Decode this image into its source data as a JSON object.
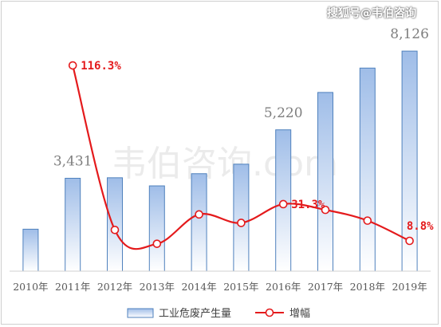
{
  "watermark": {
    "top_right": "搜狐号@韦伯咨询",
    "center": "韦伯咨询.com"
  },
  "colors": {
    "bar_fill_top": "#9fbde8",
    "bar_fill_bottom": "#ffffff",
    "bar_stroke": "#4f81bd",
    "line": "#e41a1c",
    "marker_fill": "#ffffff"
  },
  "chart_data": {
    "type": "bar",
    "categories": [
      "2010年",
      "2011年",
      "2012年",
      "2013年",
      "2014年",
      "2015年",
      "2016年",
      "2017年",
      "2018年",
      "2019年"
    ],
    "series": [
      {
        "name": "工业危废产生量",
        "values": [
          1550,
          3431,
          3450,
          3150,
          3600,
          3950,
          5220,
          6600,
          7500,
          8126
        ],
        "axis": "left"
      },
      {
        "name": "增幅",
        "type": "line",
        "values": [
          null,
          116.3,
          15.5,
          7.0,
          25.0,
          19.8,
          31.3,
          27.8,
          21.2,
          8.8
        ],
        "unit": "%",
        "axis": "right"
      }
    ],
    "data_labels": {
      "bars": [
        {
          "index": 1,
          "text": "3,431"
        },
        {
          "index": 6,
          "text": "5,220"
        },
        {
          "index": 9,
          "text": "8,126"
        }
      ],
      "line": [
        {
          "index": 1,
          "text": "116.3%"
        },
        {
          "index": 6,
          "text": "31.3%"
        },
        {
          "index": 9,
          "text": "8.8%"
        }
      ]
    },
    "ylim_left": [
      0,
      8600
    ],
    "ylim_right": [
      0,
      130
    ],
    "legend_position": "bottom",
    "grid": false
  }
}
